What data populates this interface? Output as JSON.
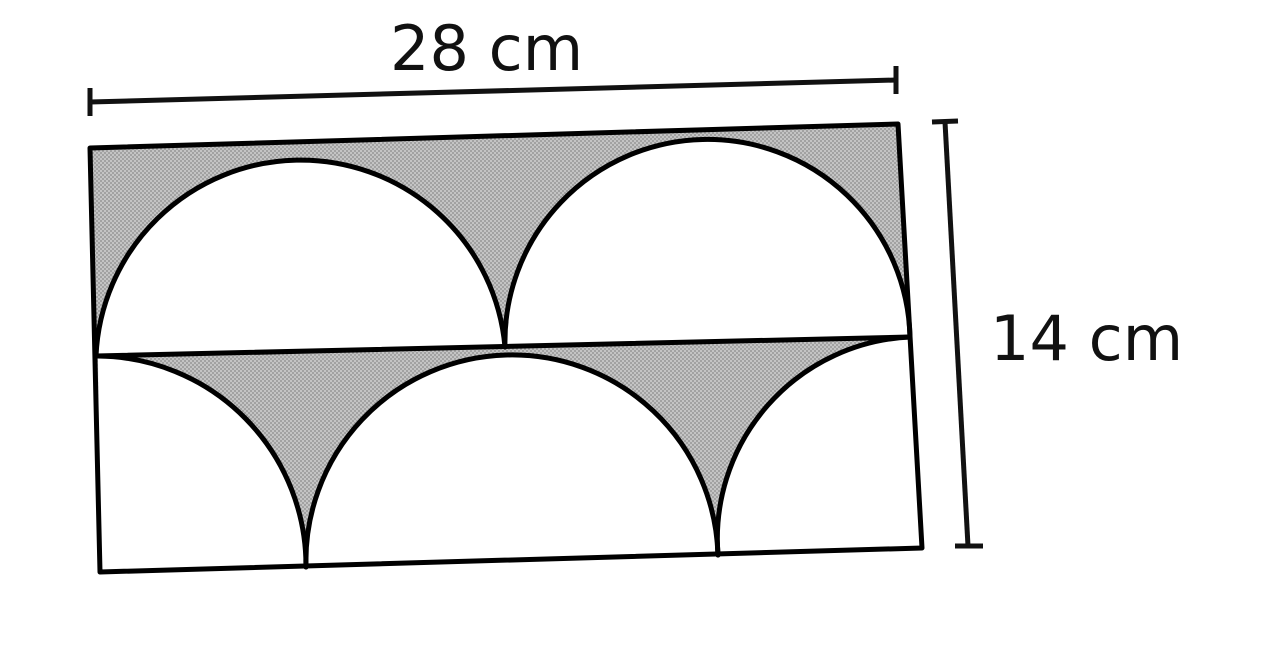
{
  "figure": {
    "width_label": "28 cm",
    "height_label": "14 cm",
    "shading_pattern": "dotted-gray",
    "shading_color": "#b3b3b3",
    "line_color": "#000000"
  }
}
